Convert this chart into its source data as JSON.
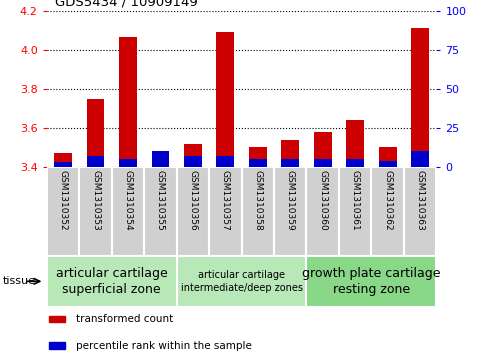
{
  "title": "GDS5434 / 10909149",
  "samples": [
    "GSM1310352",
    "GSM1310353",
    "GSM1310354",
    "GSM1310355",
    "GSM1310356",
    "GSM1310357",
    "GSM1310358",
    "GSM1310359",
    "GSM1310360",
    "GSM1310361",
    "GSM1310362",
    "GSM1310363"
  ],
  "red_values": [
    3.47,
    3.75,
    4.065,
    3.41,
    3.52,
    4.09,
    3.5,
    3.54,
    3.58,
    3.64,
    3.5,
    4.11
  ],
  "blue_values_pct": [
    3,
    7,
    5,
    10,
    7,
    7,
    5,
    5,
    5,
    5,
    4,
    10
  ],
  "ymin": 3.4,
  "ymax": 4.2,
  "yticks_left": [
    3.4,
    3.6,
    3.8,
    4.0,
    4.2
  ],
  "yticks_right": [
    0,
    25,
    50,
    75,
    100
  ],
  "tissue_groups": [
    {
      "label": "articular cartilage\nsuperficial zone",
      "start": 0,
      "end": 4,
      "color": "#b8e8b8",
      "fontsize": 9
    },
    {
      "label": "articular cartilage\nintermediate/deep zones",
      "start": 4,
      "end": 8,
      "color": "#b8e8b8",
      "fontsize": 7
    },
    {
      "label": "growth plate cartilage\nresting zone",
      "start": 8,
      "end": 12,
      "color": "#88d888",
      "fontsize": 9
    }
  ],
  "tissue_label": "tissue",
  "legend_red": "transformed count",
  "legend_blue": "percentile rank within the sample",
  "bar_width": 0.55,
  "red_color": "#cc0000",
  "blue_color": "#0000cc"
}
